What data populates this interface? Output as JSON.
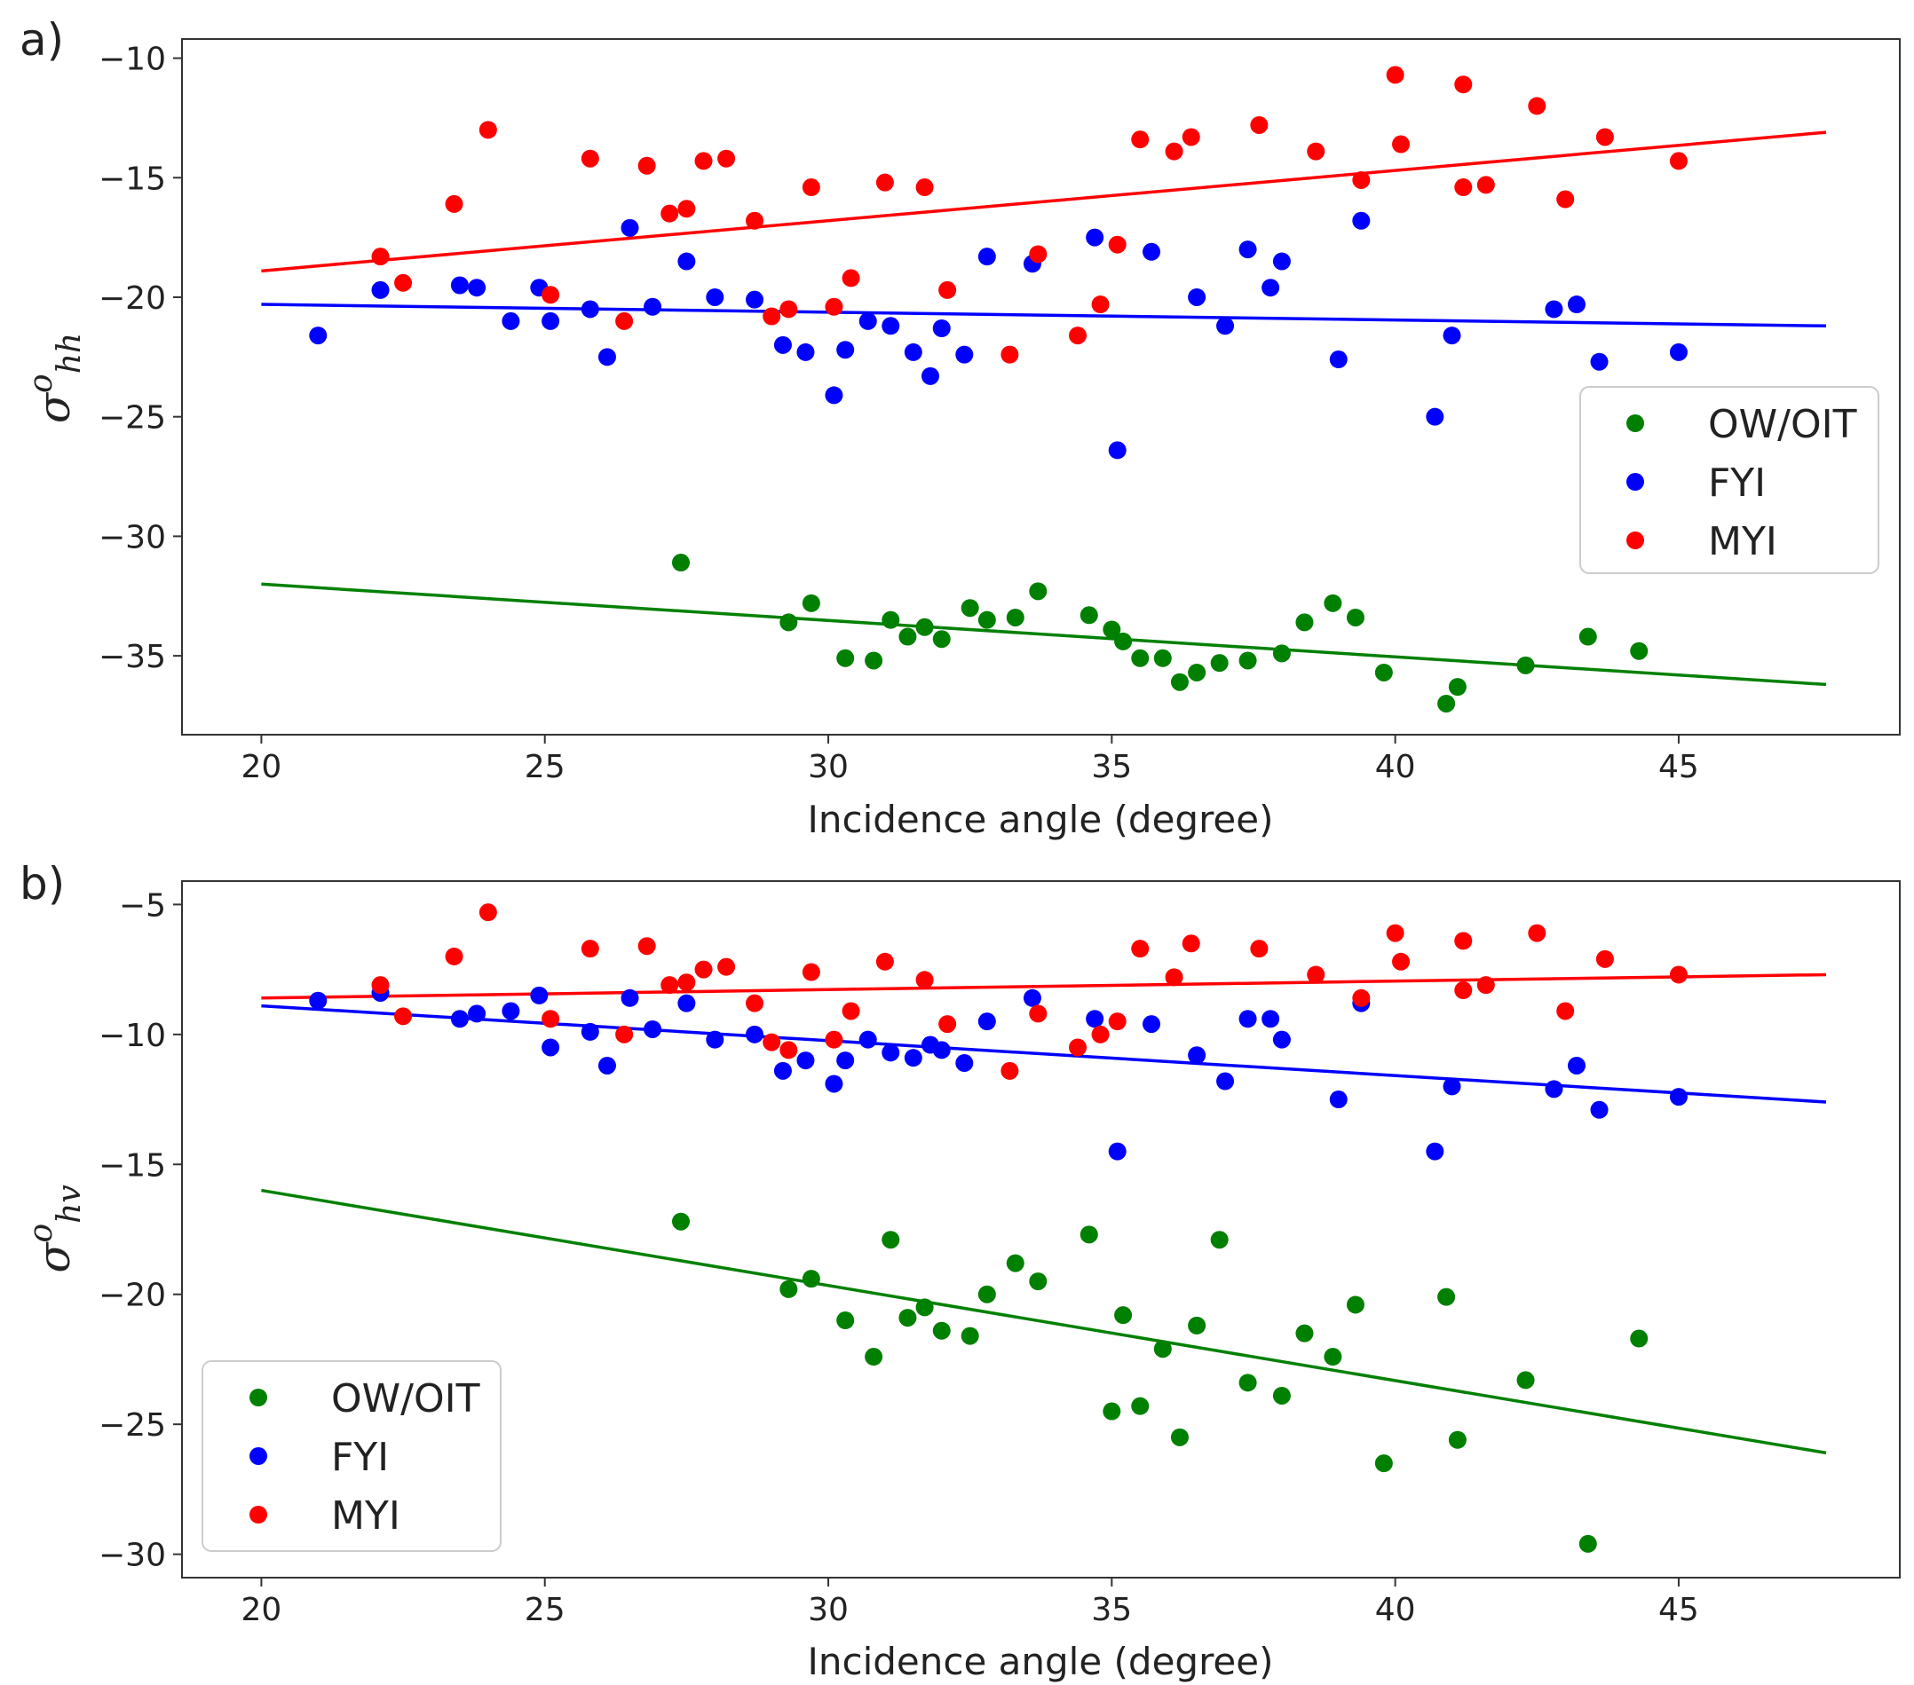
{
  "chart_data": [
    {
      "type": "scatter",
      "panel_label": "a)",
      "xlabel": "Incidence angle (degree)",
      "ylabel": {
        "base": "σ",
        "sup": "o",
        "sub": "hh"
      },
      "xlim": [
        18.6,
        48.9
      ],
      "ylim": [
        -38.3,
        -9.2
      ],
      "xticks": [
        20,
        25,
        30,
        35,
        40,
        45
      ],
      "yticks": [
        -10,
        -15,
        -20,
        -25,
        -30,
        -35
      ],
      "tick_labels_x": [
        "20",
        "25",
        "30",
        "35",
        "40",
        "45"
      ],
      "tick_labels_y": [
        "−10",
        "−15",
        "−20",
        "−25",
        "−30",
        "−35"
      ],
      "legend_position": "center-right",
      "series": [
        {
          "name": "OW/OIT",
          "color": "#008000",
          "fit": {
            "x": [
              20,
              47.6
            ],
            "y": [
              -32.0,
              -36.2
            ]
          },
          "points": [
            [
              27.4,
              -31.1
            ],
            [
              29.3,
              -33.6
            ],
            [
              29.7,
              -32.8
            ],
            [
              30.3,
              -35.1
            ],
            [
              30.8,
              -35.2
            ],
            [
              31.1,
              -33.5
            ],
            [
              31.4,
              -34.2
            ],
            [
              31.7,
              -33.8
            ],
            [
              32.0,
              -34.3
            ],
            [
              32.5,
              -33.0
            ],
            [
              32.8,
              -33.5
            ],
            [
              33.3,
              -33.4
            ],
            [
              33.7,
              -32.3
            ],
            [
              34.6,
              -33.3
            ],
            [
              35.0,
              -33.9
            ],
            [
              35.2,
              -34.4
            ],
            [
              35.5,
              -35.1
            ],
            [
              35.9,
              -35.1
            ],
            [
              36.2,
              -36.1
            ],
            [
              36.5,
              -35.7
            ],
            [
              36.9,
              -35.3
            ],
            [
              37.4,
              -35.2
            ],
            [
              38.0,
              -34.9
            ],
            [
              38.4,
              -33.6
            ],
            [
              38.9,
              -32.8
            ],
            [
              39.3,
              -33.4
            ],
            [
              39.8,
              -35.7
            ],
            [
              40.9,
              -37.0
            ],
            [
              41.1,
              -36.3
            ],
            [
              42.3,
              -35.4
            ],
            [
              43.4,
              -34.2
            ],
            [
              44.3,
              -34.8
            ]
          ]
        },
        {
          "name": "FYI",
          "color": "#0000ff",
          "fit": {
            "x": [
              20,
              47.6
            ],
            "y": [
              -20.3,
              -21.2
            ]
          },
          "points": [
            [
              21.0,
              -21.6
            ],
            [
              22.1,
              -19.7
            ],
            [
              23.5,
              -19.5
            ],
            [
              23.8,
              -19.6
            ],
            [
              24.4,
              -21.0
            ],
            [
              24.9,
              -19.6
            ],
            [
              25.1,
              -21.0
            ],
            [
              25.8,
              -20.5
            ],
            [
              26.1,
              -22.5
            ],
            [
              26.5,
              -17.1
            ],
            [
              26.9,
              -20.4
            ],
            [
              27.5,
              -18.5
            ],
            [
              28.0,
              -20.0
            ],
            [
              28.7,
              -20.1
            ],
            [
              29.2,
              -22.0
            ],
            [
              29.6,
              -22.3
            ],
            [
              30.1,
              -24.1
            ],
            [
              30.3,
              -22.2
            ],
            [
              30.7,
              -21.0
            ],
            [
              31.1,
              -21.2
            ],
            [
              31.5,
              -22.3
            ],
            [
              31.8,
              -23.3
            ],
            [
              32.0,
              -21.3
            ],
            [
              32.4,
              -22.4
            ],
            [
              32.8,
              -18.3
            ],
            [
              33.6,
              -18.6
            ],
            [
              34.7,
              -17.5
            ],
            [
              35.1,
              -26.4
            ],
            [
              35.7,
              -18.1
            ],
            [
              36.5,
              -20.0
            ],
            [
              37.0,
              -21.2
            ],
            [
              37.4,
              -18.0
            ],
            [
              37.8,
              -19.6
            ],
            [
              38.0,
              -18.5
            ],
            [
              39.0,
              -22.6
            ],
            [
              39.4,
              -16.8
            ],
            [
              40.7,
              -25.0
            ],
            [
              41.0,
              -21.6
            ],
            [
              42.8,
              -20.5
            ],
            [
              43.2,
              -20.3
            ],
            [
              43.6,
              -22.7
            ],
            [
              45.0,
              -22.3
            ]
          ]
        },
        {
          "name": "MYI",
          "color": "#ff0000",
          "fit": {
            "x": [
              20,
              47.6
            ],
            "y": [
              -18.9,
              -13.1
            ]
          },
          "points": [
            [
              22.1,
              -18.3
            ],
            [
              22.5,
              -19.4
            ],
            [
              23.4,
              -16.1
            ],
            [
              24.0,
              -13.0
            ],
            [
              25.1,
              -19.9
            ],
            [
              25.8,
              -14.2
            ],
            [
              26.4,
              -21.0
            ],
            [
              26.8,
              -14.5
            ],
            [
              27.2,
              -16.5
            ],
            [
              27.5,
              -16.3
            ],
            [
              27.8,
              -14.3
            ],
            [
              28.2,
              -14.2
            ],
            [
              28.7,
              -16.8
            ],
            [
              29.0,
              -20.8
            ],
            [
              29.3,
              -20.5
            ],
            [
              29.7,
              -15.4
            ],
            [
              30.1,
              -20.4
            ],
            [
              30.4,
              -19.2
            ],
            [
              31.0,
              -15.2
            ],
            [
              31.7,
              -15.4
            ],
            [
              32.1,
              -19.7
            ],
            [
              33.2,
              -22.4
            ],
            [
              33.7,
              -18.2
            ],
            [
              34.4,
              -21.6
            ],
            [
              34.8,
              -20.3
            ],
            [
              35.1,
              -17.8
            ],
            [
              35.5,
              -13.4
            ],
            [
              36.1,
              -13.9
            ],
            [
              36.4,
              -13.3
            ],
            [
              37.6,
              -12.8
            ],
            [
              38.6,
              -13.9
            ],
            [
              39.4,
              -15.1
            ],
            [
              40.0,
              -10.7
            ],
            [
              40.1,
              -13.6
            ],
            [
              41.2,
              -11.1
            ],
            [
              41.2,
              -15.4
            ],
            [
              41.6,
              -15.3
            ],
            [
              42.5,
              -12.0
            ],
            [
              43.0,
              -15.9
            ],
            [
              43.7,
              -13.3
            ],
            [
              45.0,
              -14.3
            ]
          ]
        }
      ]
    },
    {
      "type": "scatter",
      "panel_label": "b)",
      "xlabel": "Incidence angle (degree)",
      "ylabel": {
        "base": "σ",
        "sup": "o",
        "sub": "hv"
      },
      "xlim": [
        18.6,
        48.9
      ],
      "ylim": [
        -30.9,
        -4.1
      ],
      "xticks": [
        20,
        25,
        30,
        35,
        40,
        45
      ],
      "yticks": [
        -5,
        -10,
        -15,
        -20,
        -25,
        -30
      ],
      "tick_labels_x": [
        "20",
        "25",
        "30",
        "35",
        "40",
        "45"
      ],
      "tick_labels_y": [
        "−5",
        "−10",
        "−15",
        "−20",
        "−25",
        "−30"
      ],
      "legend_position": "lower-left",
      "series": [
        {
          "name": "OW/OIT",
          "color": "#008000",
          "fit": {
            "x": [
              20,
              47.6
            ],
            "y": [
              -16.0,
              -26.1
            ]
          },
          "points": [
            [
              27.4,
              -17.2
            ],
            [
              29.3,
              -19.8
            ],
            [
              29.7,
              -19.4
            ],
            [
              30.3,
              -21.0
            ],
            [
              30.8,
              -22.4
            ],
            [
              31.1,
              -17.9
            ],
            [
              31.4,
              -20.9
            ],
            [
              31.7,
              -20.5
            ],
            [
              32.0,
              -21.4
            ],
            [
              32.5,
              -21.6
            ],
            [
              32.8,
              -20.0
            ],
            [
              33.3,
              -18.8
            ],
            [
              33.7,
              -19.5
            ],
            [
              34.6,
              -17.7
            ],
            [
              35.0,
              -24.5
            ],
            [
              35.2,
              -20.8
            ],
            [
              35.5,
              -24.3
            ],
            [
              35.9,
              -22.1
            ],
            [
              36.2,
              -25.5
            ],
            [
              36.5,
              -21.2
            ],
            [
              36.9,
              -17.9
            ],
            [
              37.4,
              -23.4
            ],
            [
              38.0,
              -23.9
            ],
            [
              38.4,
              -21.5
            ],
            [
              38.9,
              -22.4
            ],
            [
              39.3,
              -20.4
            ],
            [
              39.8,
              -26.5
            ],
            [
              40.9,
              -20.1
            ],
            [
              41.1,
              -25.6
            ],
            [
              42.3,
              -23.3
            ],
            [
              43.4,
              -29.6
            ],
            [
              44.3,
              -21.7
            ]
          ]
        },
        {
          "name": "FYI",
          "color": "#0000ff",
          "fit": {
            "x": [
              20,
              47.6
            ],
            "y": [
              -8.9,
              -12.6
            ]
          },
          "points": [
            [
              21.0,
              -8.7
            ],
            [
              22.1,
              -8.4
            ],
            [
              23.5,
              -9.4
            ],
            [
              23.8,
              -9.2
            ],
            [
              24.4,
              -9.1
            ],
            [
              24.9,
              -8.5
            ],
            [
              25.1,
              -10.5
            ],
            [
              25.8,
              -9.9
            ],
            [
              26.1,
              -11.2
            ],
            [
              26.5,
              -8.6
            ],
            [
              26.9,
              -9.8
            ],
            [
              27.5,
              -8.8
            ],
            [
              28.0,
              -10.2
            ],
            [
              28.7,
              -10.0
            ],
            [
              29.2,
              -11.4
            ],
            [
              29.6,
              -11.0
            ],
            [
              30.1,
              -11.9
            ],
            [
              30.3,
              -11.0
            ],
            [
              30.7,
              -10.2
            ],
            [
              31.1,
              -10.7
            ],
            [
              31.5,
              -10.9
            ],
            [
              31.8,
              -10.4
            ],
            [
              32.0,
              -10.6
            ],
            [
              32.4,
              -11.1
            ],
            [
              32.8,
              -9.5
            ],
            [
              33.6,
              -8.6
            ],
            [
              34.7,
              -9.4
            ],
            [
              35.1,
              -14.5
            ],
            [
              35.7,
              -9.6
            ],
            [
              36.5,
              -10.8
            ],
            [
              37.0,
              -11.8
            ],
            [
              37.4,
              -9.4
            ],
            [
              37.8,
              -9.4
            ],
            [
              38.0,
              -10.2
            ],
            [
              39.0,
              -12.5
            ],
            [
              39.4,
              -8.8
            ],
            [
              40.7,
              -14.5
            ],
            [
              41.0,
              -12.0
            ],
            [
              42.8,
              -12.1
            ],
            [
              43.2,
              -11.2
            ],
            [
              43.6,
              -12.9
            ],
            [
              45.0,
              -12.4
            ]
          ]
        },
        {
          "name": "MYI",
          "color": "#ff0000",
          "fit": {
            "x": [
              20,
              47.6
            ],
            "y": [
              -8.6,
              -7.7
            ]
          },
          "points": [
            [
              22.1,
              -8.1
            ],
            [
              22.5,
              -9.3
            ],
            [
              23.4,
              -7.0
            ],
            [
              24.0,
              -5.3
            ],
            [
              25.1,
              -9.4
            ],
            [
              25.8,
              -6.7
            ],
            [
              26.4,
              -10.0
            ],
            [
              26.8,
              -6.6
            ],
            [
              27.2,
              -8.1
            ],
            [
              27.5,
              -8.0
            ],
            [
              27.8,
              -7.5
            ],
            [
              28.2,
              -7.4
            ],
            [
              28.7,
              -8.8
            ],
            [
              29.0,
              -10.3
            ],
            [
              29.3,
              -10.6
            ],
            [
              29.7,
              -7.6
            ],
            [
              30.1,
              -10.2
            ],
            [
              30.4,
              -9.1
            ],
            [
              31.0,
              -7.2
            ],
            [
              31.7,
              -7.9
            ],
            [
              32.1,
              -9.6
            ],
            [
              33.2,
              -11.4
            ],
            [
              33.7,
              -9.2
            ],
            [
              34.4,
              -10.5
            ],
            [
              34.8,
              -10.0
            ],
            [
              35.1,
              -9.5
            ],
            [
              35.5,
              -6.7
            ],
            [
              36.1,
              -7.8
            ],
            [
              36.4,
              -6.5
            ],
            [
              37.6,
              -6.7
            ],
            [
              38.6,
              -7.7
            ],
            [
              39.4,
              -8.6
            ],
            [
              40.0,
              -6.1
            ],
            [
              40.1,
              -7.2
            ],
            [
              41.2,
              -6.4
            ],
            [
              41.2,
              -8.3
            ],
            [
              41.6,
              -8.1
            ],
            [
              42.5,
              -6.1
            ],
            [
              43.0,
              -9.1
            ],
            [
              43.7,
              -7.1
            ],
            [
              45.0,
              -7.7
            ]
          ]
        }
      ]
    }
  ]
}
